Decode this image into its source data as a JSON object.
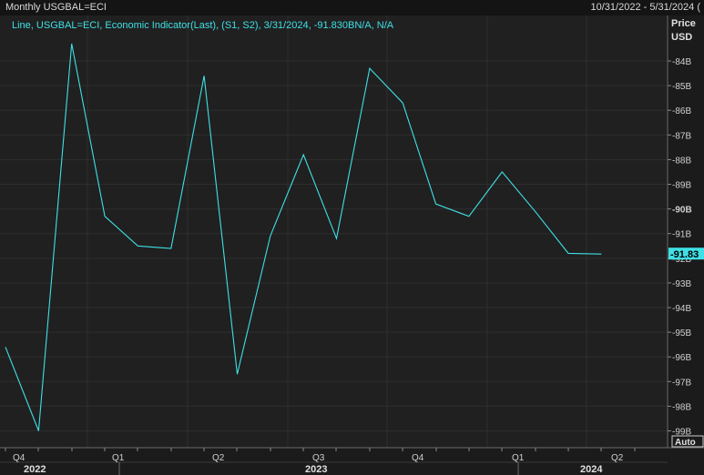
{
  "header": {
    "title": "Monthly USGBAL=ECI",
    "date_range": "10/31/2022 - 5/31/2024 ("
  },
  "legend": {
    "text": "Line, USGBAL=ECI, Economic Indicator(Last), (S1, S2), 3/31/2024, -91.830BN/A, N/A"
  },
  "axis": {
    "price_label": "Price",
    "currency_label": "USD",
    "auto_label": "Auto",
    "last_value_label": "-91.83",
    "y_ticks": [
      "-84B",
      "-85B",
      "-86B",
      "-87B",
      "-88B",
      "-89B",
      "-90B",
      "-91B",
      "-92B",
      "-93B",
      "-94B",
      "-95B",
      "-96B",
      "-97B",
      "-98B",
      "-99B"
    ],
    "bold_tick": "-90B",
    "quarter_labels": [
      "Q4",
      "Q1",
      "Q2",
      "Q3",
      "Q4",
      "Q1",
      "Q2"
    ],
    "year_labels": [
      "2022",
      "2023",
      "2024"
    ]
  },
  "colors": {
    "line": "#3fe0e6",
    "background": "#1b1b1b",
    "grid": "#2e2e2e"
  },
  "chart_data": {
    "type": "line",
    "series": [
      {
        "values": [
          -95.6,
          -99.0,
          -83.3,
          -90.3,
          -91.5,
          -91.6,
          -84.6,
          -96.7,
          -91.1,
          -87.8,
          -91.2,
          -84.3,
          -85.7,
          -89.8,
          -90.3,
          -88.5,
          -90.1,
          -91.8,
          -91.83
        ]
      }
    ],
    "ylim": [
      -99.1,
      -82.9
    ],
    "grid": true
  }
}
